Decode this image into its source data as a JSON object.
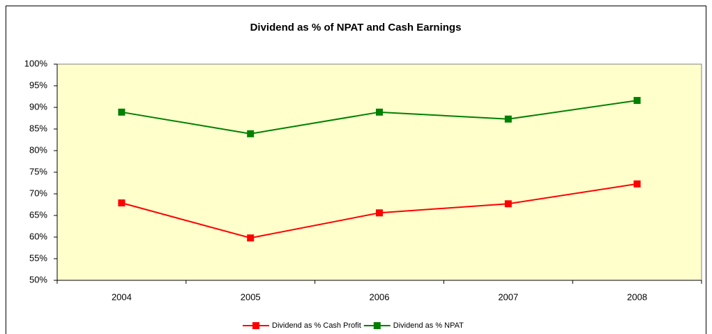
{
  "chart_data": {
    "type": "line",
    "title": "Dividend as % of NPAT and Cash Earnings",
    "categories": [
      "2004",
      "2005",
      "2006",
      "2007",
      "2008"
    ],
    "series": [
      {
        "name": "Dividend as % Cash Profit",
        "color": "#ff0000",
        "values": [
          67.9,
          59.8,
          65.6,
          67.7,
          72.3
        ]
      },
      {
        "name": "Dividend as % NPAT",
        "color": "#008000",
        "values": [
          88.9,
          83.9,
          88.9,
          87.3,
          91.6
        ]
      }
    ],
    "ylim": [
      50,
      100
    ],
    "yticks": [
      {
        "value": 50,
        "label": "50%"
      },
      {
        "value": 55,
        "label": "55%"
      },
      {
        "value": 60,
        "label": "60%"
      },
      {
        "value": 65,
        "label": "65%"
      },
      {
        "value": 70,
        "label": "70%"
      },
      {
        "value": 75,
        "label": "75%"
      },
      {
        "value": 80,
        "label": "80%"
      },
      {
        "value": 85,
        "label": "85%"
      },
      {
        "value": 90,
        "label": "90%"
      },
      {
        "value": 95,
        "label": "95%"
      },
      {
        "value": 100,
        "label": "100%"
      }
    ],
    "plot_background": "#ffffcc",
    "legend": "bottom"
  }
}
